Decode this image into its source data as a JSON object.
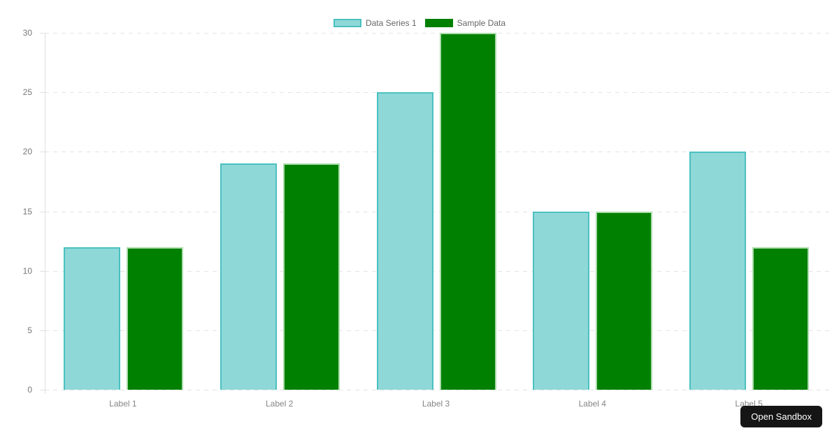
{
  "chart_data": {
    "type": "bar",
    "categories": [
      "Label 1",
      "Label 2",
      "Label 3",
      "Label 4",
      "Label 5"
    ],
    "series": [
      {
        "name": "Data Series 1",
        "values": [
          12,
          19,
          25,
          15,
          20
        ],
        "fill": "#8fd8d8",
        "border": "#4bc0c0"
      },
      {
        "name": "Sample Data",
        "values": [
          12,
          19,
          30,
          15,
          12
        ],
        "fill": "#008000",
        "border": "#aadcaa"
      }
    ],
    "title": "",
    "xlabel": "",
    "ylabel": "",
    "ylim": [
      0,
      30
    ],
    "yticks": [
      0,
      5,
      10,
      15,
      20,
      25,
      30
    ],
    "grid": "horizontal-dashed",
    "legend_position": "top-center"
  },
  "colors": {
    "grid": "#e3e3e3",
    "axis": "#e0e0e0",
    "tick_text": "#777777",
    "xlabel_text": "#858585",
    "legend_text": "#666666",
    "button_bg": "#151515",
    "button_text": "#ffffff",
    "background": "#ffffff"
  },
  "overlay": {
    "open_sandbox_label": "Open Sandbox"
  }
}
